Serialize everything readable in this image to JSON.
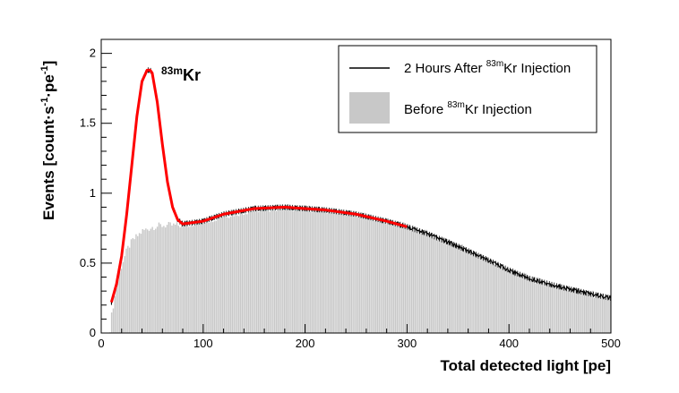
{
  "chart_data": {
    "type": "histogram",
    "xlabel": "Total detected light [pe]",
    "ylabel_parts": {
      "pre": "Events [count",
      "dot": "·",
      "s": "s",
      "sup1": "-1",
      "pe": "pe",
      "sup2": "-1",
      "post": "]"
    },
    "xlim": [
      0,
      500
    ],
    "ylim": [
      0,
      2.1
    ],
    "xticks": [
      0,
      100,
      200,
      300,
      400,
      500
    ],
    "yticks": [
      0,
      0.5,
      1,
      1.5,
      2
    ],
    "xtick_labels": [
      "0",
      "100",
      "200",
      "300",
      "400",
      "500"
    ],
    "ytick_labels": [
      "0",
      "0.5",
      "1",
      "1.5",
      "2"
    ],
    "annotation": {
      "sup": "83m",
      "text": "Kr",
      "x": 47,
      "y": 1.9
    },
    "series": [
      {
        "name": "Before 83mKr Injection",
        "style": "filled-histogram",
        "color": "#c8c8c8",
        "x": [
          8,
          10,
          15,
          20,
          25,
          30,
          40,
          50,
          60,
          70,
          80,
          100,
          120,
          150,
          180,
          200,
          220,
          250,
          280,
          300,
          320,
          350,
          380,
          400,
          420,
          450,
          480,
          500
        ],
        "values": [
          0.03,
          0.15,
          0.35,
          0.5,
          0.6,
          0.66,
          0.73,
          0.76,
          0.77,
          0.77,
          0.77,
          0.8,
          0.84,
          0.88,
          0.9,
          0.89,
          0.88,
          0.85,
          0.8,
          0.76,
          0.71,
          0.62,
          0.52,
          0.45,
          0.39,
          0.33,
          0.28,
          0.25
        ]
      },
      {
        "name": "2 Hours After 83mKr Injection",
        "style": "line",
        "color": "#000000",
        "x": [
          10,
          15,
          20,
          25,
          30,
          35,
          40,
          45,
          48,
          50,
          55,
          60,
          65,
          70,
          75,
          80,
          90,
          100,
          120,
          150,
          180,
          200,
          220,
          250,
          280,
          300,
          320,
          350,
          380,
          400,
          420,
          450,
          480,
          500
        ],
        "values": [
          0.22,
          0.35,
          0.55,
          0.85,
          1.2,
          1.55,
          1.8,
          1.88,
          1.88,
          1.86,
          1.65,
          1.35,
          1.08,
          0.9,
          0.81,
          0.78,
          0.79,
          0.8,
          0.85,
          0.89,
          0.9,
          0.89,
          0.88,
          0.85,
          0.8,
          0.76,
          0.71,
          0.62,
          0.52,
          0.45,
          0.39,
          0.33,
          0.28,
          0.25
        ]
      },
      {
        "name": "fit",
        "style": "fit-line",
        "color": "#ff0000",
        "x": [
          10,
          15,
          20,
          25,
          30,
          35,
          40,
          45,
          48,
          50,
          55,
          60,
          65,
          70,
          75,
          80,
          90,
          100,
          120,
          150,
          180,
          200,
          220,
          250,
          280,
          300
        ],
        "values": [
          0.22,
          0.35,
          0.55,
          0.85,
          1.2,
          1.55,
          1.8,
          1.88,
          1.88,
          1.86,
          1.65,
          1.35,
          1.08,
          0.9,
          0.81,
          0.78,
          0.79,
          0.8,
          0.85,
          0.89,
          0.9,
          0.89,
          0.88,
          0.85,
          0.8,
          0.76
        ]
      }
    ],
    "legend": {
      "position": "top-right",
      "entries": [
        {
          "pre": "2 Hours After ",
          "sup": "83m",
          "post": "Kr Injection"
        },
        {
          "pre": "Before ",
          "sup": "83m",
          "post": "Kr Injection"
        }
      ]
    }
  }
}
